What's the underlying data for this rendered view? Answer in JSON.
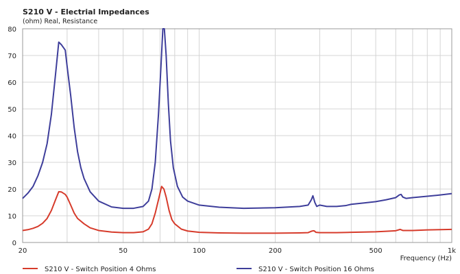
{
  "chart_data": {
    "type": "line",
    "title": "S210 V - Electrial Impedances",
    "ylabel": "(ohm)  Real, Resistance",
    "xlabel": "Frequency  (Hz)",
    "x_scale": "log",
    "xlim": [
      20,
      1000
    ],
    "ylim": [
      0,
      80
    ],
    "grid": true,
    "legend_position": "bottom",
    "x_ticks": [
      {
        "value": 20,
        "label": "20"
      },
      {
        "value": 50,
        "label": "50"
      },
      {
        "value": 100,
        "label": "100"
      },
      {
        "value": 200,
        "label": "200"
      },
      {
        "value": 500,
        "label": "500"
      },
      {
        "value": 1000,
        "label": "1k"
      }
    ],
    "y_ticks": [
      {
        "value": 0,
        "label": "0"
      },
      {
        "value": 10,
        "label": "10"
      },
      {
        "value": 20,
        "label": "20"
      },
      {
        "value": 30,
        "label": "30"
      },
      {
        "value": 40,
        "label": "40"
      },
      {
        "value": 50,
        "label": "50"
      },
      {
        "value": 60,
        "label": "60"
      },
      {
        "value": 70,
        "label": "70"
      },
      {
        "value": 80,
        "label": "80"
      }
    ],
    "series": [
      {
        "name": "S210 V - Switch Position 4 Ohms",
        "color": "#d63a2a",
        "points": [
          [
            20,
            4.5
          ],
          [
            21,
            4.8
          ],
          [
            22,
            5.3
          ],
          [
            23,
            6
          ],
          [
            24,
            7.2
          ],
          [
            25,
            9
          ],
          [
            26,
            12
          ],
          [
            27,
            16
          ],
          [
            27.8,
            19
          ],
          [
            28.5,
            18.9
          ],
          [
            29.5,
            18
          ],
          [
            30,
            17
          ],
          [
            31,
            14
          ],
          [
            32,
            11
          ],
          [
            33,
            9
          ],
          [
            35,
            7
          ],
          [
            37,
            5.5
          ],
          [
            40,
            4.5
          ],
          [
            45,
            3.9
          ],
          [
            50,
            3.7
          ],
          [
            55,
            3.7
          ],
          [
            60,
            4
          ],
          [
            63,
            5
          ],
          [
            65,
            7
          ],
          [
            67,
            11
          ],
          [
            69,
            16
          ],
          [
            71,
            21
          ],
          [
            72.5,
            20
          ],
          [
            74,
            17
          ],
          [
            76,
            12
          ],
          [
            78,
            8.5
          ],
          [
            80,
            7
          ],
          [
            85,
            5
          ],
          [
            90,
            4.3
          ],
          [
            100,
            3.8
          ],
          [
            120,
            3.6
          ],
          [
            150,
            3.5
          ],
          [
            200,
            3.5
          ],
          [
            250,
            3.6
          ],
          [
            270,
            3.7
          ],
          [
            280,
            4.3
          ],
          [
            285,
            4.4
          ],
          [
            290,
            3.8
          ],
          [
            300,
            3.7
          ],
          [
            350,
            3.7
          ],
          [
            400,
            3.8
          ],
          [
            450,
            3.9
          ],
          [
            500,
            4
          ],
          [
            550,
            4.2
          ],
          [
            600,
            4.4
          ],
          [
            625,
            4.9
          ],
          [
            640,
            4.5
          ],
          [
            700,
            4.5
          ],
          [
            800,
            4.7
          ],
          [
            900,
            4.8
          ],
          [
            1000,
            4.9
          ]
        ]
      },
      {
        "name": "S210 V - Switch Position 16 Ohms",
        "color": "#3d3d9a",
        "points": [
          [
            20,
            16.5
          ],
          [
            21,
            18.5
          ],
          [
            22,
            21
          ],
          [
            23,
            25
          ],
          [
            24,
            30
          ],
          [
            25,
            37
          ],
          [
            26,
            48
          ],
          [
            27,
            63
          ],
          [
            27.8,
            75
          ],
          [
            28.5,
            74
          ],
          [
            29.5,
            72
          ],
          [
            30,
            66
          ],
          [
            31,
            55
          ],
          [
            32,
            43
          ],
          [
            33,
            34
          ],
          [
            34,
            28
          ],
          [
            35,
            24
          ],
          [
            37,
            19
          ],
          [
            40,
            15.5
          ],
          [
            45,
            13.3
          ],
          [
            50,
            12.8
          ],
          [
            55,
            12.8
          ],
          [
            60,
            13.5
          ],
          [
            63,
            15.5
          ],
          [
            65,
            20
          ],
          [
            67,
            30
          ],
          [
            69,
            48
          ],
          [
            70.5,
            65
          ],
          [
            71.8,
            80
          ],
          [
            72.8,
            80
          ],
          [
            74,
            70
          ],
          [
            75.5,
            52
          ],
          [
            77,
            38
          ],
          [
            79,
            28
          ],
          [
            82,
            21
          ],
          [
            86,
            17
          ],
          [
            90,
            15.5
          ],
          [
            100,
            14
          ],
          [
            120,
            13.2
          ],
          [
            150,
            12.8
          ],
          [
            200,
            13
          ],
          [
            250,
            13.5
          ],
          [
            270,
            14
          ],
          [
            278,
            16
          ],
          [
            282,
            17.5
          ],
          [
            287,
            15
          ],
          [
            292,
            13.5
          ],
          [
            300,
            14
          ],
          [
            320,
            13.5
          ],
          [
            350,
            13.5
          ],
          [
            380,
            13.8
          ],
          [
            400,
            14.3
          ],
          [
            450,
            14.8
          ],
          [
            500,
            15.3
          ],
          [
            550,
            16
          ],
          [
            600,
            16.8
          ],
          [
            620,
            17.8
          ],
          [
            630,
            18
          ],
          [
            640,
            17
          ],
          [
            660,
            16.5
          ],
          [
            700,
            16.8
          ],
          [
            800,
            17.3
          ],
          [
            900,
            17.8
          ],
          [
            1000,
            18.3
          ]
        ]
      }
    ]
  }
}
